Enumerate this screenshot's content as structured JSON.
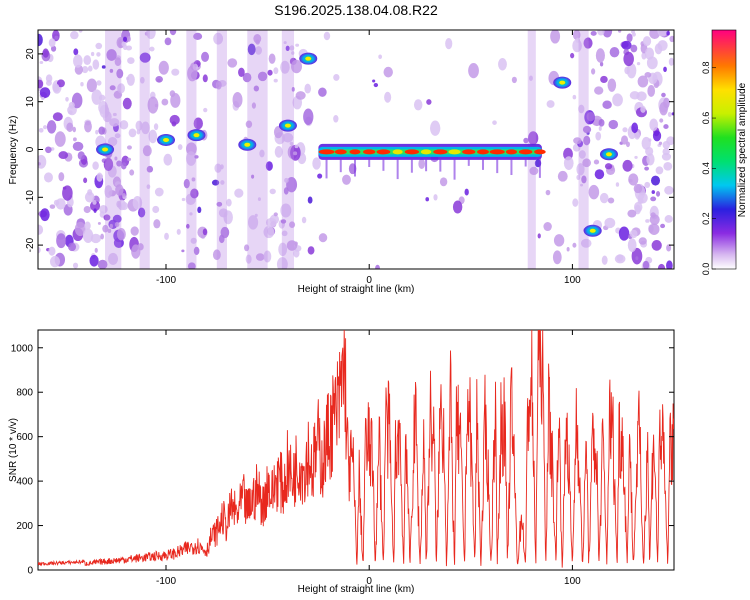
{
  "title": "S196.2025.138.04.08.R22",
  "colors": {
    "snr_line": "#e8281e",
    "axis": "#000000",
    "background": "#ffffff"
  },
  "chart_data": [
    {
      "type": "heatmap",
      "name": "spectrogram",
      "xlabel": "Height of straight line (km)",
      "ylabel": "Frequency (Hz)",
      "xlim": [
        -163,
        150
      ],
      "ylim": [
        -25,
        25
      ],
      "x_ticks": [
        -100,
        0,
        100
      ],
      "y_ticks": [
        20,
        10,
        0,
        -10,
        -20
      ],
      "colorbar": {
        "label": "Normalized spectral amplitude",
        "range": [
          0,
          0.95
        ],
        "ticks": [
          0.0,
          0.2,
          0.4,
          0.6,
          0.8
        ]
      },
      "features": {
        "carrier_band": {
          "x": [
            -25,
            85
          ],
          "frequency": -0.5
        },
        "early_tones": [
          {
            "x": -130,
            "f": 0
          },
          {
            "x": -100,
            "f": 2
          },
          {
            "x": -85,
            "f": 3
          },
          {
            "x": -60,
            "f": 1
          },
          {
            "x": -40,
            "f": 5
          },
          {
            "x": -30,
            "f": 19
          }
        ],
        "late_tones": [
          {
            "x": 95,
            "f": 14
          },
          {
            "x": 110,
            "f": -17
          },
          {
            "x": 118,
            "f": -1
          }
        ]
      }
    },
    {
      "type": "line",
      "name": "snr",
      "xlabel": "Height of straight line (km)",
      "ylabel": "SNR (10 * v/v)",
      "xlim": [
        -163,
        150
      ],
      "ylim": [
        0,
        1080
      ],
      "x_ticks": [
        -100,
        0,
        100
      ],
      "y_ticks": [
        0,
        200,
        400,
        600,
        800,
        1000
      ],
      "series": [
        {
          "values": {
            "x": [
              -163,
              -150,
              -140,
              -130,
              -120,
              -110,
              -100,
              -95,
              -90,
              -85,
              -80,
              -78,
              -75,
              -72,
              -70,
              -68,
              -65,
              -62,
              -60,
              -58,
              -55,
              -52,
              -50,
              -48,
              -45,
              -42,
              -40,
              -38,
              -35,
              -32,
              -30,
              -28,
              -25,
              -23,
              -20,
              -18,
              -15,
              -12,
              -11,
              -10,
              -8,
              -6,
              -5,
              -3,
              -2,
              0,
              2,
              3,
              5,
              7,
              8,
              10,
              12,
              13,
              15,
              17,
              18,
              20,
              22,
              23,
              25,
              27,
              28,
              30,
              32,
              33,
              35,
              37,
              38,
              40,
              42,
              43,
              45,
              47,
              48,
              50,
              52,
              53,
              55,
              57,
              58,
              60,
              62,
              63,
              65,
              67,
              68,
              70,
              72,
              73,
              75,
              77,
              78,
              80,
              82,
              83,
              85,
              87,
              88,
              90,
              92,
              93,
              95,
              97,
              98,
              100,
              102,
              103,
              105,
              107,
              108,
              110,
              112,
              113,
              115,
              117,
              118,
              120,
              122,
              123,
              125,
              127,
              128,
              130,
              132,
              133,
              135,
              137,
              138,
              140,
              142,
              143,
              145,
              147,
              148,
              150
            ],
            "y": [
              20,
              25,
              30,
              40,
              50,
              60,
              70,
              80,
              100,
              120,
              90,
              150,
              180,
              250,
              200,
              300,
              260,
              340,
              280,
              320,
              380,
              300,
              420,
              350,
              450,
              380,
              500,
              420,
              520,
              470,
              560,
              480,
              600,
              500,
              650,
              700,
              760,
              1020,
              600,
              480,
              520,
              10,
              450,
              10,
              560,
              600,
              480,
              10,
              620,
              10,
              700,
              640,
              10,
              560,
              680,
              10,
              740,
              10,
              600,
              700,
              10,
              680,
              10,
              720,
              600,
              10,
              760,
              640,
              10,
              800,
              10,
              700,
              560,
              10,
              820,
              640,
              10,
              760,
              10,
              680,
              600,
              10,
              860,
              10,
              740,
              640,
              10,
              820,
              300,
              10,
              280,
              10,
              780,
              880,
              10,
              1000,
              1080,
              10,
              780,
              520,
              10,
              840,
              10,
              720,
              560,
              10,
              760,
              600,
              10,
              640,
              10,
              600,
              560,
              10,
              620,
              10,
              700,
              640,
              10,
              660,
              600,
              10,
              700,
              10,
              580,
              640,
              10,
              660,
              10,
              700,
              10,
              720,
              520,
              10,
              640,
              560
            ]
          }
        }
      ]
    }
  ]
}
